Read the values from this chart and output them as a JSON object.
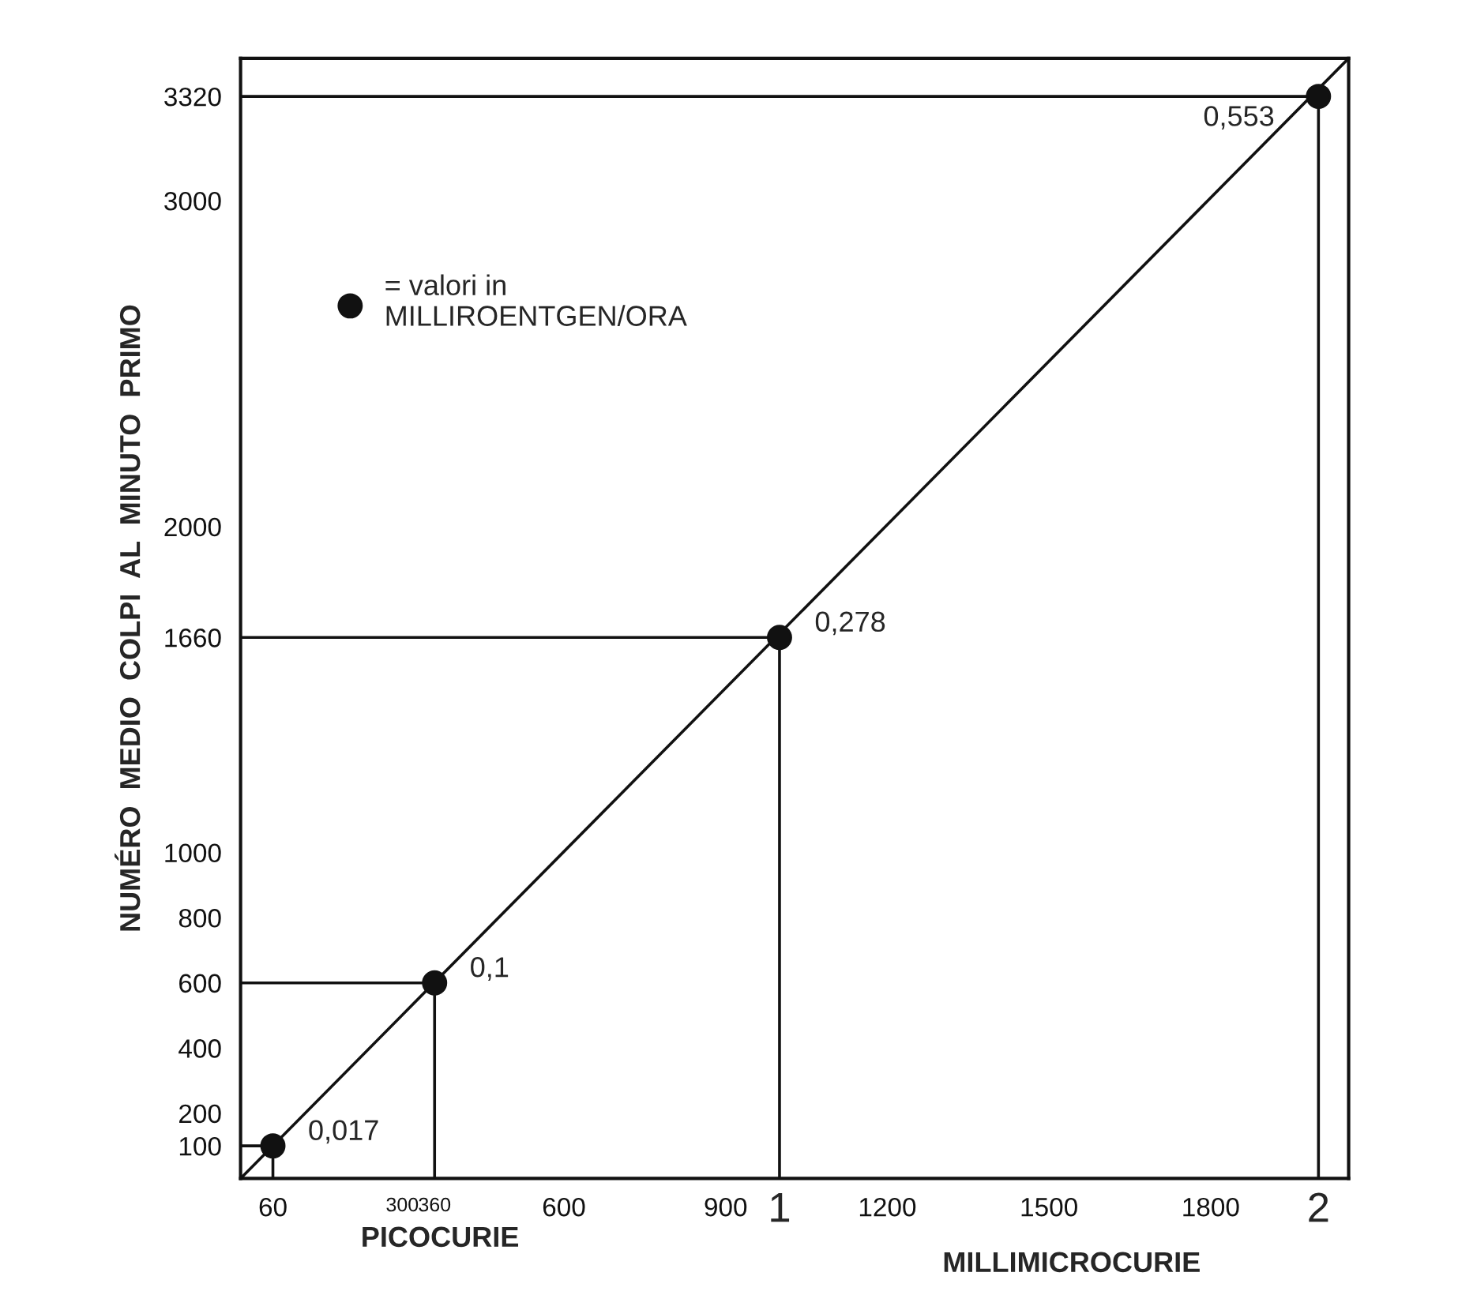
{
  "chart_data": {
    "type": "scatter",
    "xlabel": "PICOCURIE",
    "ylabel": "NUMÉRO  MEDIO  COLPI  AL  MINUTO  PRIMO",
    "annotations": [
      "MILLIMICROCURIE",
      {
        "text": "0,017",
        "x": 60,
        "y": 100
      },
      {
        "text": "0,1",
        "x": 360,
        "y": 600
      },
      {
        "text": "0,278",
        "x": 1000,
        "y": 1660
      },
      {
        "text": "0,553",
        "x": 2000,
        "y": 3320
      },
      {
        "text": "1",
        "x": 1000,
        "y": 0
      },
      {
        "text": "2",
        "x": 2000,
        "y": 0
      }
    ],
    "xlim": [
      0,
      2056
    ],
    "ylim": [
      0,
      3437
    ],
    "xticks": [
      60,
      300,
      360,
      600,
      900,
      1200,
      1500,
      1800
    ],
    "yticks": [
      100,
      200,
      400,
      600,
      800,
      1000,
      1660,
      2000,
      3000,
      3320
    ],
    "grid": false,
    "legend": "top left",
    "series": [
      {
        "type": "line",
        "color": "#111111",
        "x": [
          0,
          2056
        ],
        "values": [
          0,
          3437
        ],
        "marker": "none"
      },
      {
        "type": "line",
        "color": "#111111",
        "x": [
          0,
          60,
          60
        ],
        "values": [
          100,
          100,
          0
        ],
        "marker": "none"
      },
      {
        "type": "line",
        "color": "#111111",
        "x": [
          0,
          360,
          360
        ],
        "values": [
          600,
          600,
          0
        ],
        "marker": "none"
      },
      {
        "type": "line",
        "color": "#111111",
        "x": [
          0,
          1000,
          1000
        ],
        "values": [
          1660,
          1660,
          0
        ],
        "marker": "none"
      },
      {
        "type": "line",
        "color": "#111111",
        "x": [
          0,
          2000,
          2000
        ],
        "values": [
          3320,
          3320,
          0
        ],
        "marker": "none"
      },
      {
        "type": "scatter",
        "name": "= valori in\nMILLIROENTGEN/ORA",
        "color": "#111111",
        "marker": "circle",
        "x": [
          60,
          360,
          1000,
          2000
        ],
        "values": [
          100,
          600,
          1660,
          3320
        ]
      }
    ]
  }
}
